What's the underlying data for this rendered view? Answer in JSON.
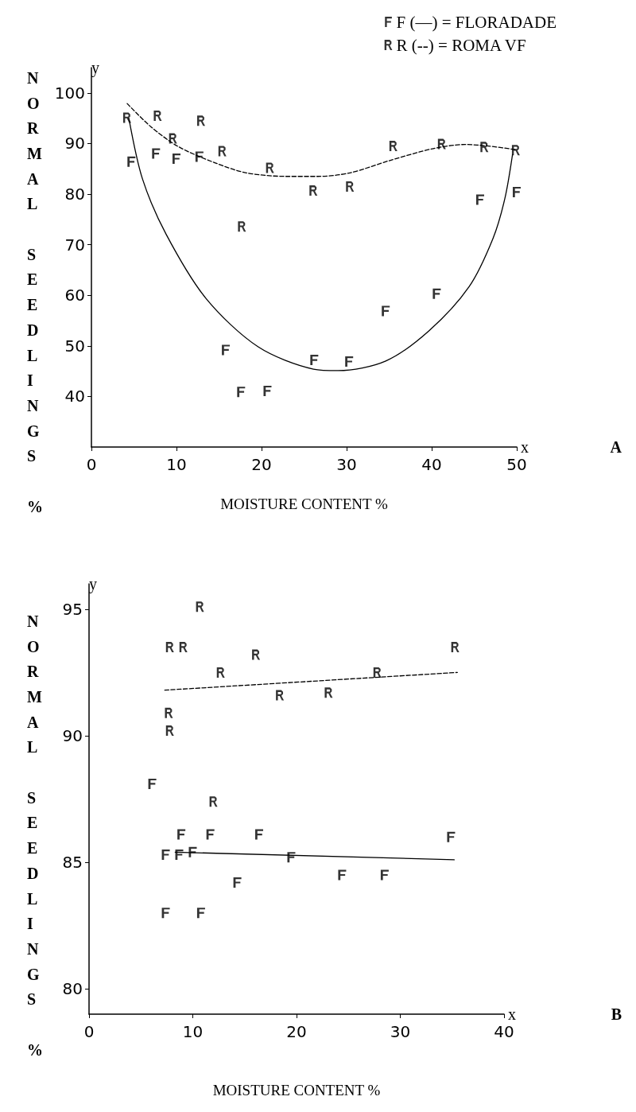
{
  "chart_data": [
    {
      "type": "scatter",
      "xlabel": "MOISTURE CONTENT %",
      "ylabel": "NORMAL SEEDLINGS %",
      "xlim": [
        0,
        50
      ],
      "xticks": [
        0,
        10,
        20,
        30,
        40,
        50
      ],
      "ylim": [
        30,
        105
      ],
      "yticks": [
        40,
        50,
        60,
        70,
        80,
        90,
        100
      ],
      "grid": false,
      "legend": "top right",
      "annotations": [
        "y",
        "x",
        "A"
      ],
      "series": [
        {
          "name": "F (—) = FLORADADE",
          "color": "#000000",
          "x": [
            4.7,
            7.6,
            10.0,
            12.7,
            15.8,
            17.6,
            20.7,
            26.2,
            30.3,
            34.6,
            40.6,
            45.7,
            50.0
          ],
          "values": [
            86.4,
            88.0,
            87.0,
            87.4,
            49.2,
            40.9,
            41.1,
            47.2,
            46.9,
            56.9,
            60.3,
            78.9,
            80.4
          ]
        },
        {
          "name": "R (--) = ROMA VF",
          "color": "#000000",
          "x": [
            4.2,
            7.8,
            9.6,
            12.9,
            15.4,
            17.7,
            21.0,
            26.1,
            30.4,
            35.5,
            41.2,
            46.2,
            49.9
          ],
          "values": [
            95.1,
            95.5,
            91.0,
            94.5,
            88.5,
            73.6,
            85.2,
            80.7,
            81.5,
            89.5,
            89.9,
            89.3,
            88.7
          ]
        },
        {
          "type": "line",
          "line_style": "solid",
          "color": "#000000",
          "x": [
            4.4,
            6.0,
            8.8,
            13.5,
            19.6,
            26.1,
            29.0,
            34.6,
            39.7,
            44.4,
            47.2,
            48.6,
            49.5
          ],
          "values": [
            95,
            83,
            72,
            59.3,
            49.8,
            45.4,
            45.1,
            47,
            53,
            61.7,
            71.2,
            79.1,
            87.8
          ]
        },
        {
          "type": "line",
          "line_style": "dashed",
          "color": "#000000",
          "x": [
            4.2,
            7.0,
            10.2,
            14.5,
            18.2,
            22.9,
            26.6,
            30.4,
            35.0,
            40.2,
            43.9,
            46.7,
            49.8
          ],
          "values": [
            97.9,
            93.3,
            89.4,
            86.2,
            84.2,
            83.5,
            83.5,
            84.2,
            86.6,
            89.0,
            89.8,
            89.5,
            88.8
          ]
        }
      ]
    },
    {
      "type": "scatter",
      "xlabel": "MOISTURE CONTENT %",
      "ylabel": "NORMAL SEEDLINGS %",
      "xlim": [
        0,
        40
      ],
      "xticks": [
        0,
        10,
        20,
        30,
        40
      ],
      "ylim": [
        79,
        96
      ],
      "yticks": [
        80,
        85,
        90,
        95
      ],
      "grid": false,
      "annotations": [
        "y",
        "x",
        "B"
      ],
      "series": [
        {
          "color": "#000000",
          "x": [
            6.1,
            8.9,
            11.7,
            16.4,
            34.9,
            7.4,
            8.7,
            10.0,
            19.5,
            14.3,
            24.4,
            28.5,
            7.4,
            10.8
          ],
          "values": [
            88.1,
            86.1,
            86.1,
            86.1,
            86.0,
            85.3,
            85.3,
            85.4,
            85.2,
            84.2,
            84.5,
            84.5,
            83.0,
            83.0
          ]
        },
        {
          "color": "#000000",
          "x": [
            10.7,
            7.8,
            9.1,
            16.1,
            12.7,
            18.4,
            23.1,
            27.8,
            35.3,
            7.7,
            7.8,
            12.0
          ],
          "values": [
            95.1,
            93.5,
            93.5,
            93.2,
            92.5,
            91.6,
            91.7,
            92.5,
            93.5,
            90.9,
            90.2,
            87.4
          ]
        },
        {
          "type": "line",
          "line_style": "solid",
          "color": "#000000",
          "x": [
            8.3,
            35.2
          ],
          "values": [
            85.4,
            85.1
          ]
        },
        {
          "type": "line",
          "line_style": "dashed",
          "color": "#000000",
          "x": [
            7.3,
            35.5
          ],
          "values": [
            91.8,
            92.5
          ]
        }
      ]
    }
  ]
}
